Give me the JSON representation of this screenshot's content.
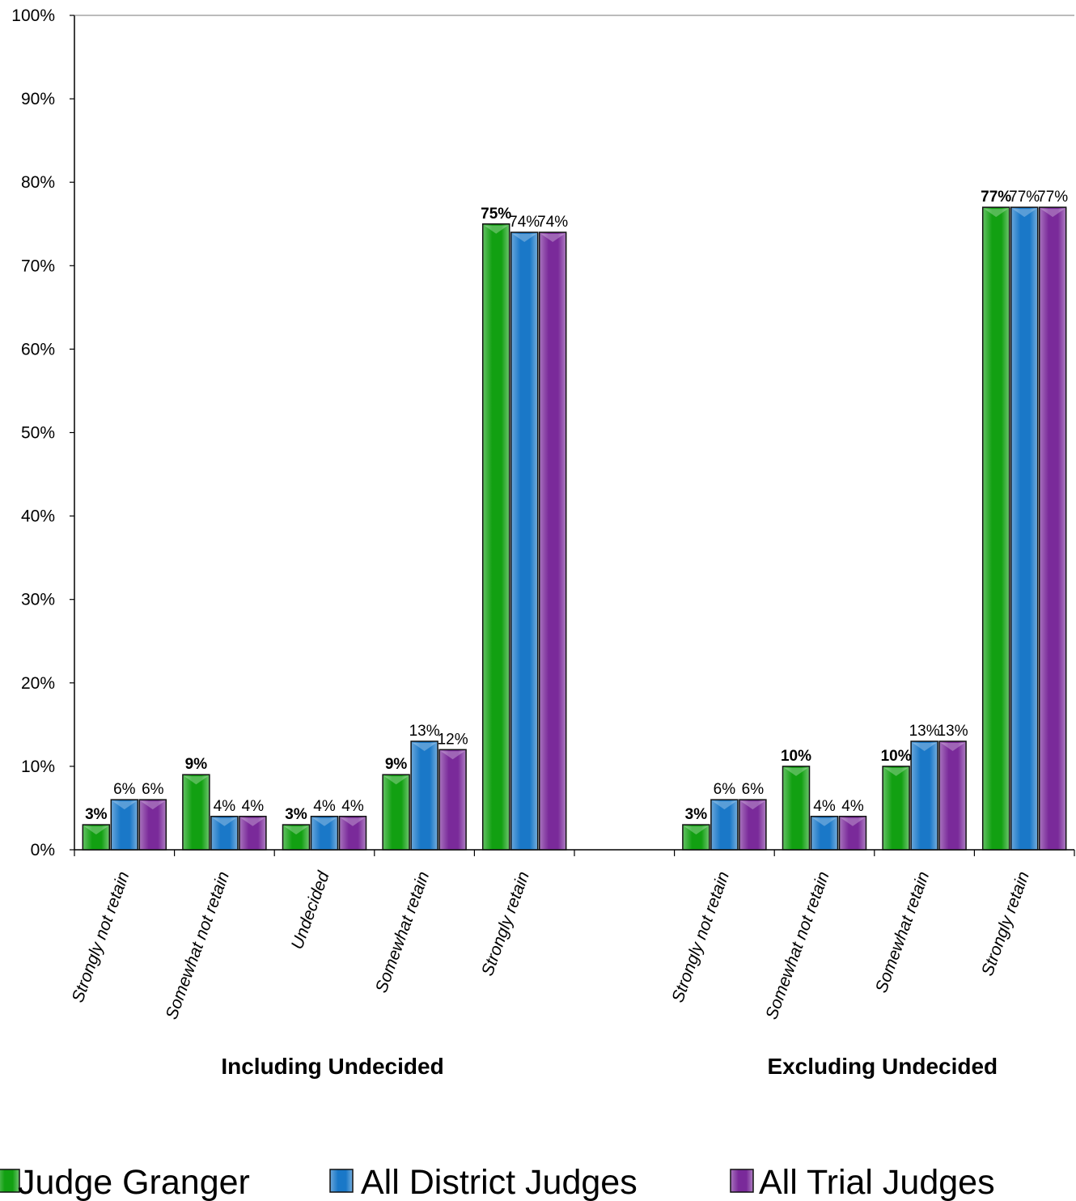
{
  "chart_data": {
    "type": "bar",
    "title": "",
    "xlabel": "",
    "ylabel": "",
    "ylim": [
      0,
      100
    ],
    "yticks": [
      "0%",
      "10%",
      "20%",
      "30%",
      "40%",
      "50%",
      "60%",
      "70%",
      "80%",
      "90%",
      "100%"
    ],
    "grid": false,
    "legend_position": "bottom",
    "groups": [
      {
        "label": "Including Undecided",
        "categories": [
          "Strongly not retain",
          "Somewhat not retain",
          "Undecided",
          "Somewhat retain",
          "Strongly retain"
        ],
        "series": [
          {
            "name": "Judge Granger",
            "values": [
              3,
              9,
              3,
              9,
              75
            ],
            "labels": [
              "3%",
              "9%",
              "3%",
              "9%",
              "75%"
            ]
          },
          {
            "name": "All District Judges",
            "values": [
              6,
              4,
              4,
              13,
              74
            ],
            "labels": [
              "6%",
              "4%",
              "4%",
              "13%",
              "74%"
            ]
          },
          {
            "name": "All Trial Judges",
            "values": [
              6,
              4,
              4,
              12,
              74
            ],
            "labels": [
              "6%",
              "4%",
              "4%",
              "12%",
              "74%"
            ]
          }
        ]
      },
      {
        "label": "Excluding Undecided",
        "categories": [
          "Strongly not retain",
          "Somewhat not retain",
          "Somewhat retain",
          "Strongly retain"
        ],
        "series": [
          {
            "name": "Judge Granger",
            "values": [
              3,
              10,
              10,
              77
            ],
            "labels": [
              "3%",
              "10%",
              "10%",
              "77%"
            ]
          },
          {
            "name": "All District Judges",
            "values": [
              6,
              4,
              13,
              77
            ],
            "labels": [
              "6%",
              "4%",
              "13%",
              "77%"
            ]
          },
          {
            "name": "All Trial Judges",
            "values": [
              6,
              4,
              13,
              77
            ],
            "labels": [
              "6%",
              "4%",
              "13%",
              "77%"
            ]
          }
        ]
      }
    ],
    "legend": [
      "Judge Granger",
      "All District Judges",
      "All Trial Judges"
    ],
    "colors": {
      "Judge Granger": "#12a012",
      "All District Judges": "#1a78c8",
      "All Trial Judges": "#7a2a9a"
    }
  }
}
